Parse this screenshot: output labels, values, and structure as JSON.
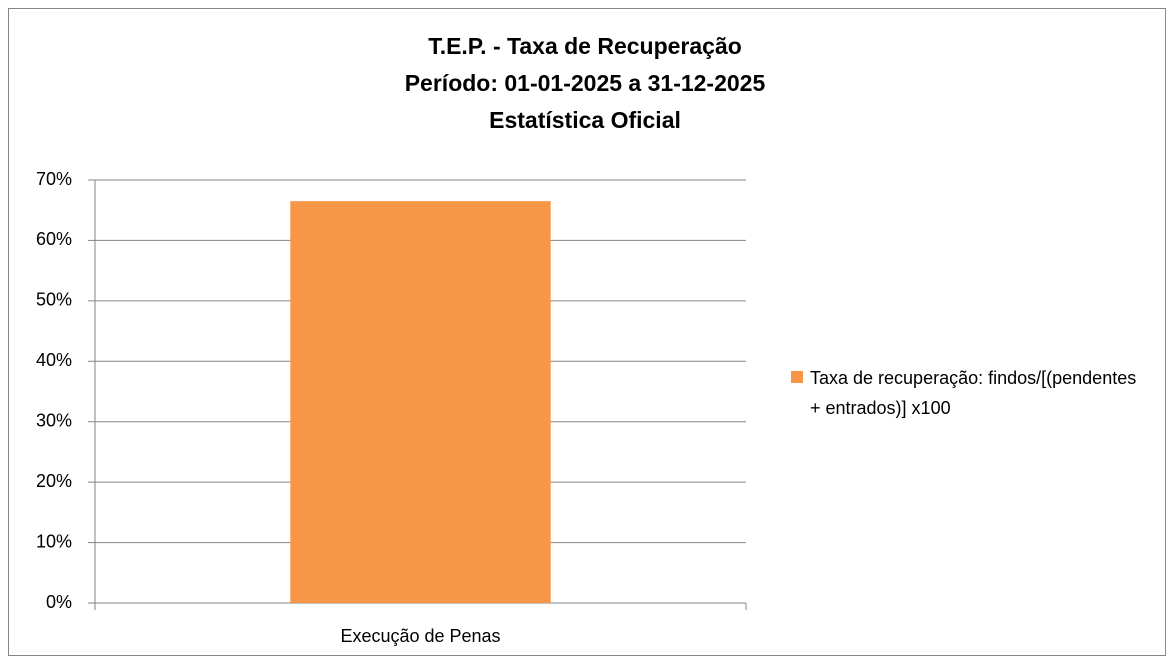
{
  "chart_data": {
    "type": "bar",
    "title": [
      "T.E.P. - Taxa de Recuperação",
      "Período: 01-01-2025 a 31-12-2025",
      "Estatística Oficial"
    ],
    "categories": [
      "Execução de Penas"
    ],
    "series": [
      {
        "name": "Taxa de recuperação: findos/[(pendentes + entrados)] x100",
        "color": "#f79646",
        "values": [
          66.5
        ]
      }
    ],
    "ylim": [
      0,
      70
    ],
    "yticks": [
      {
        "value": 0,
        "label": "0%"
      },
      {
        "value": 10,
        "label": "10%"
      },
      {
        "value": 20,
        "label": "20%"
      },
      {
        "value": 30,
        "label": "30%"
      },
      {
        "value": 40,
        "label": "40%"
      },
      {
        "value": 50,
        "label": "50%"
      },
      {
        "value": 60,
        "label": "60%"
      },
      {
        "value": 70,
        "label": "70%"
      }
    ],
    "grid": true,
    "legend": "right"
  }
}
